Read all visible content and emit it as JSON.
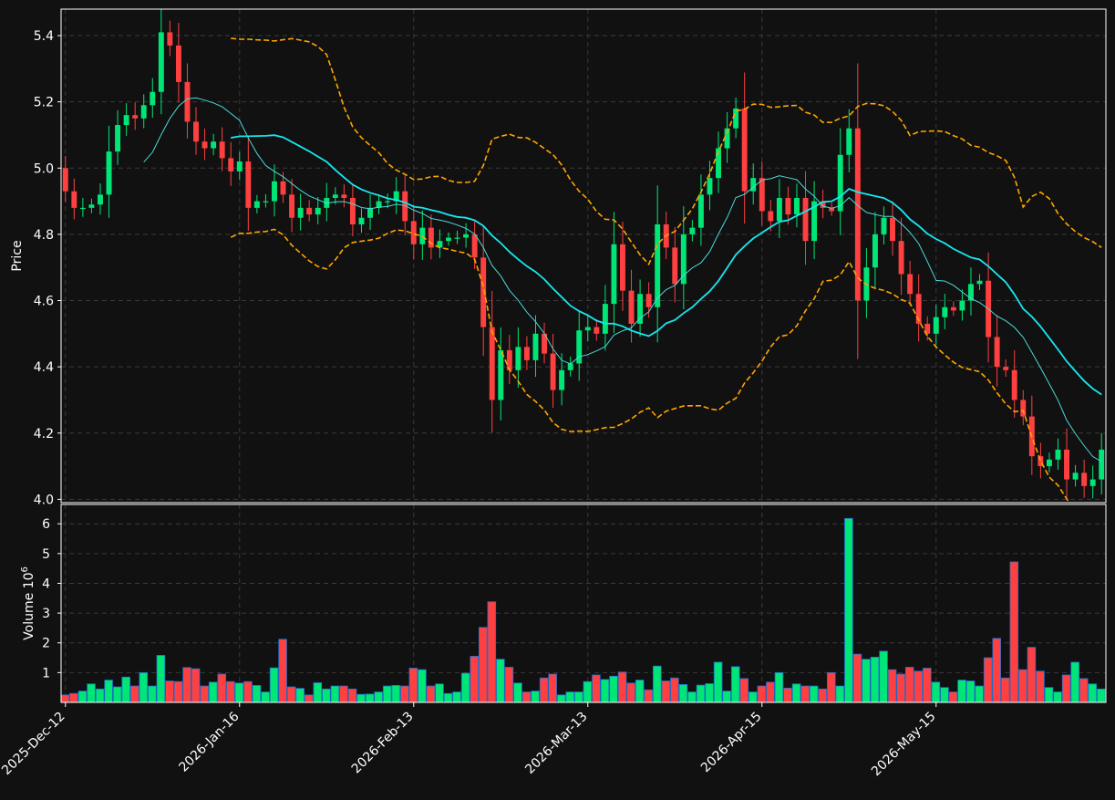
{
  "chart_data": {
    "type": "candlestick",
    "price_panel": {
      "ylabel": "Price",
      "ylim": [
        3.99,
        5.48
      ],
      "yticks": [
        4.0,
        4.2,
        4.4,
        4.6,
        4.8,
        5.0,
        5.2,
        5.4
      ],
      "ytick_labels": [
        "4.0",
        "4.2",
        "4.4",
        "4.6",
        "4.8",
        "5.0",
        "5.2",
        "5.4"
      ],
      "grid": true
    },
    "volume_panel": {
      "ylabel": "Volume",
      "ylabel_exponent": "10",
      "ylabel_power": "6",
      "ylim": [
        0,
        6.65
      ],
      "yticks": [
        1,
        2,
        3,
        4,
        5,
        6
      ],
      "ytick_labels": [
        "1",
        "2",
        "3",
        "4",
        "5",
        "6"
      ],
      "grid": true
    },
    "x_ticks": [
      {
        "index": 0,
        "label": "2025-Dec-12"
      },
      {
        "index": 20,
        "label": "2026-Jan-16"
      },
      {
        "index": 40,
        "label": "2026-Feb-13"
      },
      {
        "index": 60,
        "label": "2026-Mar-13"
      },
      {
        "index": 80,
        "label": "2026-Apr-15"
      },
      {
        "index": 100,
        "label": "2026-May-15"
      }
    ],
    "colors": {
      "background": "#111111",
      "up": "#00e676",
      "down": "#ff4040",
      "ma_short": "#4dd9d9",
      "ma_long": "#19e6f0",
      "bands": "#ffa500",
      "grid": "#3a3a3a",
      "spine": "#ffffff"
    },
    "close": [
      4.93,
      4.88,
      4.88,
      4.89,
      4.92,
      5.05,
      5.13,
      5.16,
      5.15,
      5.19,
      5.23,
      5.41,
      5.37,
      5.26,
      5.14,
      5.08,
      5.06,
      5.08,
      5.03,
      4.99,
      5.02,
      4.88,
      4.9,
      4.9,
      4.96,
      4.92,
      4.85,
      4.88,
      4.86,
      4.88,
      4.91,
      4.92,
      4.91,
      4.83,
      4.85,
      4.88,
      4.9,
      4.9,
      4.93,
      4.84,
      4.77,
      4.82,
      4.76,
      4.78,
      4.79,
      4.79,
      4.8,
      4.73,
      4.52,
      4.3,
      4.45,
      4.39,
      4.46,
      4.42,
      4.5,
      4.44,
      4.33,
      4.39,
      4.41,
      4.51,
      4.52,
      4.5,
      4.59,
      4.77,
      4.63,
      4.53,
      4.62,
      4.58,
      4.83,
      4.76,
      4.65,
      4.8,
      4.82,
      4.92,
      4.97,
      5.06,
      5.12,
      5.18,
      4.93,
      4.97,
      4.87,
      4.84,
      4.91,
      4.86,
      4.91,
      4.78,
      4.9,
      4.88,
      4.87,
      5.04,
      5.12,
      4.6,
      4.7,
      4.8,
      4.85,
      4.78,
      4.68,
      4.62,
      4.53,
      4.5,
      4.55,
      4.58,
      4.57,
      4.6,
      4.65,
      4.66,
      4.49,
      4.4,
      4.39,
      4.3,
      4.25,
      4.13,
      4.1,
      4.12,
      4.15,
      4.06,
      4.08,
      4.04,
      4.06,
      4.15
    ],
    "volume": [
      0.25,
      0.3,
      0.38,
      0.62,
      0.45,
      0.75,
      0.52,
      0.85,
      0.55,
      1.0,
      0.55,
      1.58,
      0.72,
      0.7,
      1.17,
      1.13,
      0.55,
      0.68,
      0.95,
      0.7,
      0.65,
      0.7,
      0.57,
      0.35,
      1.16,
      2.12,
      0.52,
      0.47,
      0.25,
      0.66,
      0.45,
      0.55,
      0.55,
      0.45,
      0.27,
      0.28,
      0.35,
      0.55,
      0.57,
      0.55,
      1.15,
      1.1,
      0.55,
      0.62,
      0.3,
      0.35,
      0.98,
      1.55,
      2.52,
      3.38,
      1.45,
      1.18,
      0.65,
      0.35,
      0.38,
      0.82,
      0.95,
      0.25,
      0.35,
      0.35,
      0.7,
      0.92,
      0.77,
      0.88,
      1.02,
      0.65,
      0.75,
      0.42,
      1.22,
      0.72,
      0.82,
      0.6,
      0.35,
      0.58,
      0.63,
      1.35,
      0.38,
      1.2,
      0.8,
      0.35,
      0.55,
      0.68,
      1.0,
      0.48,
      0.62,
      0.55,
      0.55,
      0.45,
      1.0,
      0.55,
      6.18,
      1.62,
      1.45,
      1.52,
      1.72,
      1.1,
      0.95,
      1.18,
      1.05,
      1.15,
      0.68,
      0.5,
      0.35,
      0.75,
      0.72,
      0.55,
      1.5,
      2.15,
      0.82,
      4.72,
      1.1,
      1.85,
      1.05,
      0.5,
      0.35,
      0.92,
      1.35,
      0.8,
      0.62,
      0.45
    ]
  }
}
